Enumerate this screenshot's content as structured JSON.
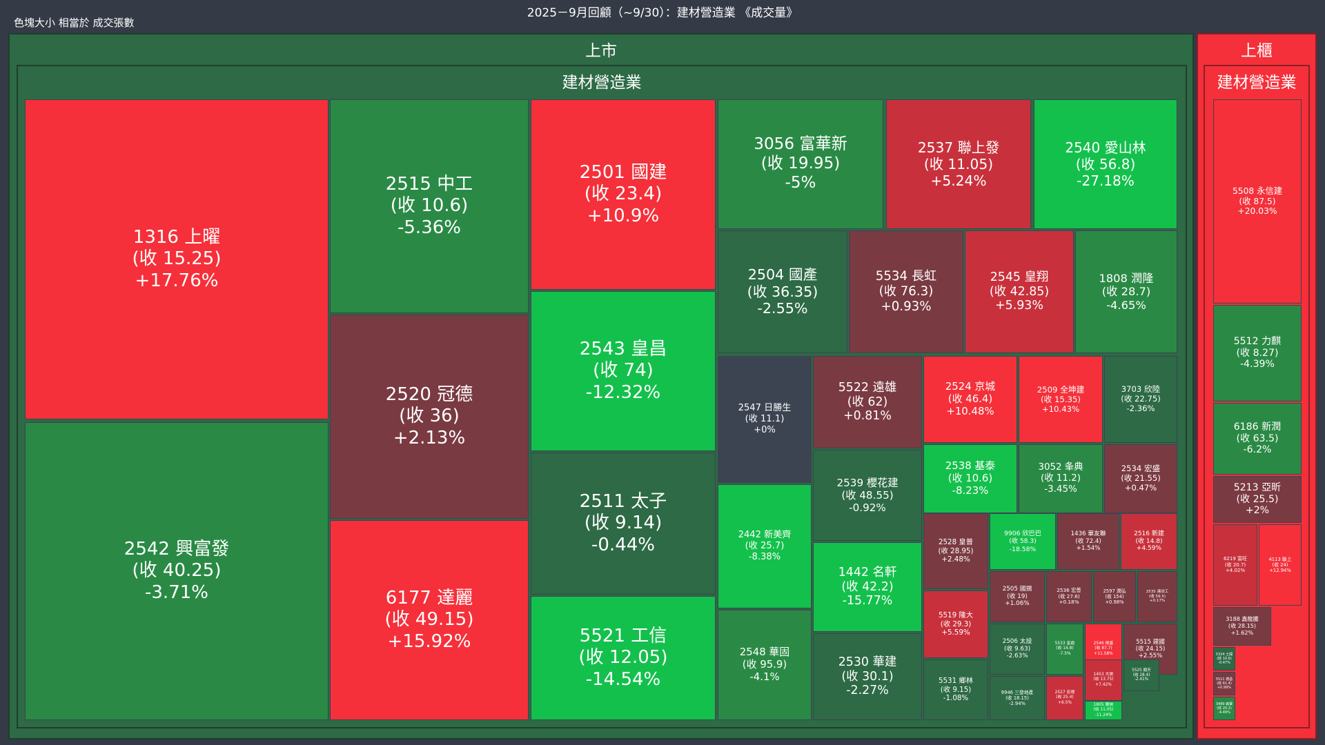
{
  "header": {
    "title": "2025－9月回顧（~9/30）：建材營造業 《成交量》",
    "subtitle": "色塊大小 相當於 成交張數"
  },
  "markets": [
    {
      "label": "上市",
      "sector": "建材營造業"
    },
    {
      "label": "上櫃",
      "sector": "建材營造業"
    }
  ],
  "chart_data": {
    "type": "treemap",
    "title": "2025－9月回顧（~9/30）：建材營造業 《成交量》",
    "size_measure": "成交張數",
    "color_measure": "change_percent",
    "colors": {
      "up_strong": "#f5303a",
      "up_mid": "#c8313c",
      "up_weak": "#7a3a42",
      "flat": "#3c4452",
      "down_weak": "#2d6a45",
      "down_mid": "#2a8a45",
      "down_strong": "#14c04c",
      "sector_bg": "#2d6a45"
    },
    "tiles": [
      {
        "market": "上市",
        "label": "1316 上曜",
        "close": "(收 15.25)",
        "change": "+17.76%",
        "change_pct": 17.76
      },
      {
        "market": "上市",
        "label": "2542 興富發",
        "close": "(收 40.25)",
        "change": "-3.71%",
        "change_pct": -3.71
      },
      {
        "market": "上市",
        "label": "2515 中工",
        "close": "(收 10.6)",
        "change": "-5.36%",
        "change_pct": -5.36
      },
      {
        "market": "上市",
        "label": "2520 冠德",
        "close": "(收 36)",
        "change": "+2.13%",
        "change_pct": 2.13
      },
      {
        "market": "上市",
        "label": "6177 達麗",
        "close": "(收 49.15)",
        "change": "+15.92%",
        "change_pct": 15.92
      },
      {
        "market": "上市",
        "label": "2501 國建",
        "close": "(收 23.4)",
        "change": "+10.9%",
        "change_pct": 10.9
      },
      {
        "market": "上市",
        "label": "2543 皇昌",
        "close": "(收 74)",
        "change": "-12.32%",
        "change_pct": -12.32
      },
      {
        "market": "上市",
        "label": "2511 太子",
        "close": "(收 9.14)",
        "change": "-0.44%",
        "change_pct": -0.44
      },
      {
        "market": "上市",
        "label": "5521 工信",
        "close": "(收 12.05)",
        "change": "-14.54%",
        "change_pct": -14.54
      },
      {
        "market": "上市",
        "label": "3056 富華新",
        "close": "(收 19.95)",
        "change": "-5%",
        "change_pct": -5
      },
      {
        "market": "上市",
        "label": "2537 聯上發",
        "close": "(收 11.05)",
        "change": "+5.24%",
        "change_pct": 5.24
      },
      {
        "market": "上市",
        "label": "2540 愛山林",
        "close": "(收 56.8)",
        "change": "-27.18%",
        "change_pct": -27.18
      },
      {
        "market": "上市",
        "label": "2504 國產",
        "close": "(收 36.35)",
        "change": "-2.55%",
        "change_pct": -2.55
      },
      {
        "market": "上市",
        "label": "5534 長虹",
        "close": "(收 76.3)",
        "change": "+0.93%",
        "change_pct": 0.93
      },
      {
        "market": "上市",
        "label": "2545 皇翔",
        "close": "(收 42.85)",
        "change": "+5.93%",
        "change_pct": 5.93
      },
      {
        "market": "上市",
        "label": "1808 潤隆",
        "close": "(收 28.7)",
        "change": "-4.65%",
        "change_pct": -4.65
      },
      {
        "market": "上市",
        "label": "2547 日勝生",
        "close": "(收 11.1)",
        "change": "+0%",
        "change_pct": 0
      },
      {
        "market": "上市",
        "label": "2442 新美齊",
        "close": "(收 25.7)",
        "change": "-8.38%",
        "change_pct": -8.38
      },
      {
        "market": "上市",
        "label": "2548 華固",
        "close": "(收 95.9)",
        "change": "-4.1%",
        "change_pct": -4.1
      },
      {
        "market": "上市",
        "label": "5522 遠雄",
        "close": "(收 62)",
        "change": "+0.81%",
        "change_pct": 0.81
      },
      {
        "market": "上市",
        "label": "2539 櫻花建",
        "close": "(收 48.55)",
        "change": "-0.92%",
        "change_pct": -0.92
      },
      {
        "market": "上市",
        "label": "1442 名軒",
        "close": "(收 42.2)",
        "change": "-15.77%",
        "change_pct": -15.77
      },
      {
        "market": "上市",
        "label": "2530 華建",
        "close": "(收 30.1)",
        "change": "-2.27%",
        "change_pct": -2.27
      },
      {
        "market": "上市",
        "label": "2524 京城",
        "close": "(收 46.4)",
        "change": "+10.48%",
        "change_pct": 10.48
      },
      {
        "market": "上市",
        "label": "2509 全坤建",
        "close": "(收 15.35)",
        "change": "+10.43%",
        "change_pct": 10.43
      },
      {
        "market": "上市",
        "label": "3703 欣陸",
        "close": "(收 22.75)",
        "change": "-2.36%",
        "change_pct": -2.36
      },
      {
        "market": "上市",
        "label": "2538 基泰",
        "close": "(收 10.6)",
        "change": "-8.23%",
        "change_pct": -8.23
      },
      {
        "market": "上市",
        "label": "3052 夆典",
        "close": "(收 11.2)",
        "change": "-3.45%",
        "change_pct": -3.45
      },
      {
        "market": "上市",
        "label": "2534 宏盛",
        "close": "(收 21.55)",
        "change": "+0.47%",
        "change_pct": 0.47
      },
      {
        "market": "上市",
        "label": "2528 皇普",
        "close": "(收 28.95)",
        "change": "+2.48%",
        "change_pct": 2.48
      },
      {
        "market": "上市",
        "label": "5519 隆大",
        "close": "(收 29.3)",
        "change": "+5.59%",
        "change_pct": 5.59
      },
      {
        "market": "上市",
        "label": "5531 鄉林",
        "close": "(收 9.15)",
        "change": "-1.08%",
        "change_pct": -1.08
      },
      {
        "market": "上市",
        "label": "9906 欣巴巴",
        "close": "(收 58.3)",
        "change": "-18.58%",
        "change_pct": -18.58
      },
      {
        "market": "上市",
        "label": "1436 華友聯",
        "close": "(收 72.4)",
        "change": "+1.54%",
        "change_pct": 1.54
      },
      {
        "market": "上市",
        "label": "2516 新建",
        "close": "(收 14.8)",
        "change": "+4.59%",
        "change_pct": 4.59
      },
      {
        "market": "上市",
        "label": "2505 國揚",
        "close": "(收 19)",
        "change": "+1.06%",
        "change_pct": 1.06
      },
      {
        "market": "上市",
        "label": "2536 宏普",
        "close": "(收 27.6)",
        "change": "+0.18%",
        "change_pct": 0.18
      },
      {
        "market": "上市",
        "label": "2597 潤弘",
        "close": "(收 154)",
        "change": "+0.98%",
        "change_pct": 0.98
      },
      {
        "market": "上市",
        "label": "2535 達欣工",
        "close": "(收 59.5)",
        "change": "+0.17%",
        "change_pct": 0.17
      },
      {
        "market": "上市",
        "label": "2506 太設",
        "close": "(收 9.63)",
        "change": "-2.63%",
        "change_pct": -2.63
      },
      {
        "market": "上市",
        "label": "5533 皇鼎",
        "close": "(收 14.8)",
        "change": "-7.5%",
        "change_pct": -7.5
      },
      {
        "market": "上市",
        "label": "2546 根基",
        "close": "(收 87.7)",
        "change": "+11.58%",
        "change_pct": 11.58
      },
      {
        "market": "上市",
        "label": "5515 建國",
        "close": "(收 24.15)",
        "change": "+2.55%",
        "change_pct": 2.55
      },
      {
        "market": "上市",
        "label": "1453 大將",
        "close": "(收 13.75)",
        "change": "+7.42%",
        "change_pct": 7.42
      },
      {
        "market": "上市",
        "label": "5525 順天",
        "close": "(收 28.4)",
        "change": "-2.41%",
        "change_pct": -2.41
      },
      {
        "market": "上市",
        "label": "9946 三發地產",
        "close": "(收 18.15)",
        "change": "-2.94%",
        "change_pct": -2.94
      },
      {
        "market": "上市",
        "label": "2527 宏璟",
        "close": "(收 25.4)",
        "change": "+6.5%",
        "change_pct": 6.5
      },
      {
        "market": "上市",
        "label": "1805 寶徠",
        "close": "(收 11.05)",
        "change": "-11.24%",
        "change_pct": -11.24
      },
      {
        "market": "上櫃",
        "label": "5508 永信建",
        "close": "(收 87.5)",
        "change": "+20.03%",
        "change_pct": 20.03
      },
      {
        "market": "上櫃",
        "label": "5512 力麒",
        "close": "(收 8.27)",
        "change": "-4.39%",
        "change_pct": -4.39
      },
      {
        "market": "上櫃",
        "label": "6186 新潤",
        "close": "(收 63.5)",
        "change": "-6.2%",
        "change_pct": -6.2
      },
      {
        "market": "上櫃",
        "label": "5213 亞昕",
        "close": "(收 25.5)",
        "change": "+2%",
        "change_pct": 2
      },
      {
        "market": "上櫃",
        "label": "6219 富旺",
        "close": "(收 20.7)",
        "change": "+4.02%",
        "change_pct": 4.02
      },
      {
        "market": "上櫃",
        "label": "4113 聯上",
        "close": "(收 24)",
        "change": "+12.94%",
        "change_pct": 12.94
      },
      {
        "market": "上櫃",
        "label": "3188 鑫龍騰",
        "close": "(收 28.15)",
        "change": "+1.62%",
        "change_pct": 1.62
      },
      {
        "market": "上櫃",
        "label": "5324 士開",
        "close": "(收 10.6)",
        "change": "-0.47%",
        "change_pct": -0.47
      },
      {
        "market": "上櫃",
        "label": "5511 德昌",
        "close": "(收 61.4)",
        "change": "+0.99%",
        "change_pct": 0.99
      },
      {
        "market": "上櫃",
        "label": "3489 森寶",
        "close": "(收 20.2)",
        "change": "-4.49%",
        "change_pct": -4.49
      }
    ]
  }
}
